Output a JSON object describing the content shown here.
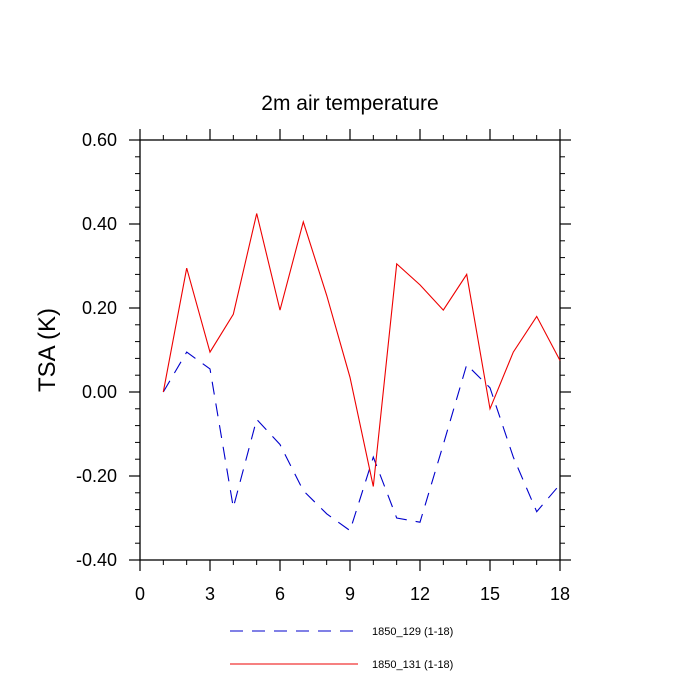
{
  "chart_data": {
    "type": "line",
    "title": "2m air temperature",
    "xlabel": "",
    "ylabel": "TSA  (K)",
    "xlim": [
      0,
      18
    ],
    "ylim": [
      -0.4,
      0.6
    ],
    "xticks": [
      0,
      3,
      6,
      9,
      12,
      15,
      18
    ],
    "xtick_labels": [
      "0",
      "3",
      "6",
      "9",
      "12",
      "15",
      "18"
    ],
    "yticks": [
      -0.4,
      -0.2,
      0.0,
      0.2,
      0.4,
      0.6
    ],
    "ytick_labels": [
      "-0.40",
      "-0.20",
      "0.00",
      "0.20",
      "0.40",
      "0.60"
    ],
    "grid": false,
    "legend_position": "bottom",
    "series": [
      {
        "name": "1850_129 (1-18)",
        "color": "#0000cc",
        "dash": "dashed",
        "x": [
          1,
          2,
          3,
          4,
          5,
          6,
          7,
          8,
          9,
          10,
          11,
          12,
          13,
          14,
          15,
          16,
          17,
          18
        ],
        "values": [
          0.0,
          0.095,
          0.055,
          -0.275,
          -0.065,
          -0.125,
          -0.235,
          -0.29,
          -0.33,
          -0.155,
          -0.3,
          -0.31,
          -0.125,
          0.065,
          0.01,
          -0.155,
          -0.285,
          -0.22
        ]
      },
      {
        "name": "1850_131 (1-18)",
        "color": "#ee0000",
        "dash": "solid",
        "x": [
          1,
          2,
          3,
          4,
          5,
          6,
          7,
          8,
          9,
          10,
          11,
          12,
          13,
          14,
          15,
          16,
          17,
          18
        ],
        "values": [
          0.0,
          0.295,
          0.095,
          0.185,
          0.425,
          0.195,
          0.405,
          0.23,
          0.035,
          -0.225,
          0.305,
          0.255,
          0.195,
          0.28,
          -0.04,
          0.095,
          0.18,
          0.075
        ]
      }
    ]
  }
}
